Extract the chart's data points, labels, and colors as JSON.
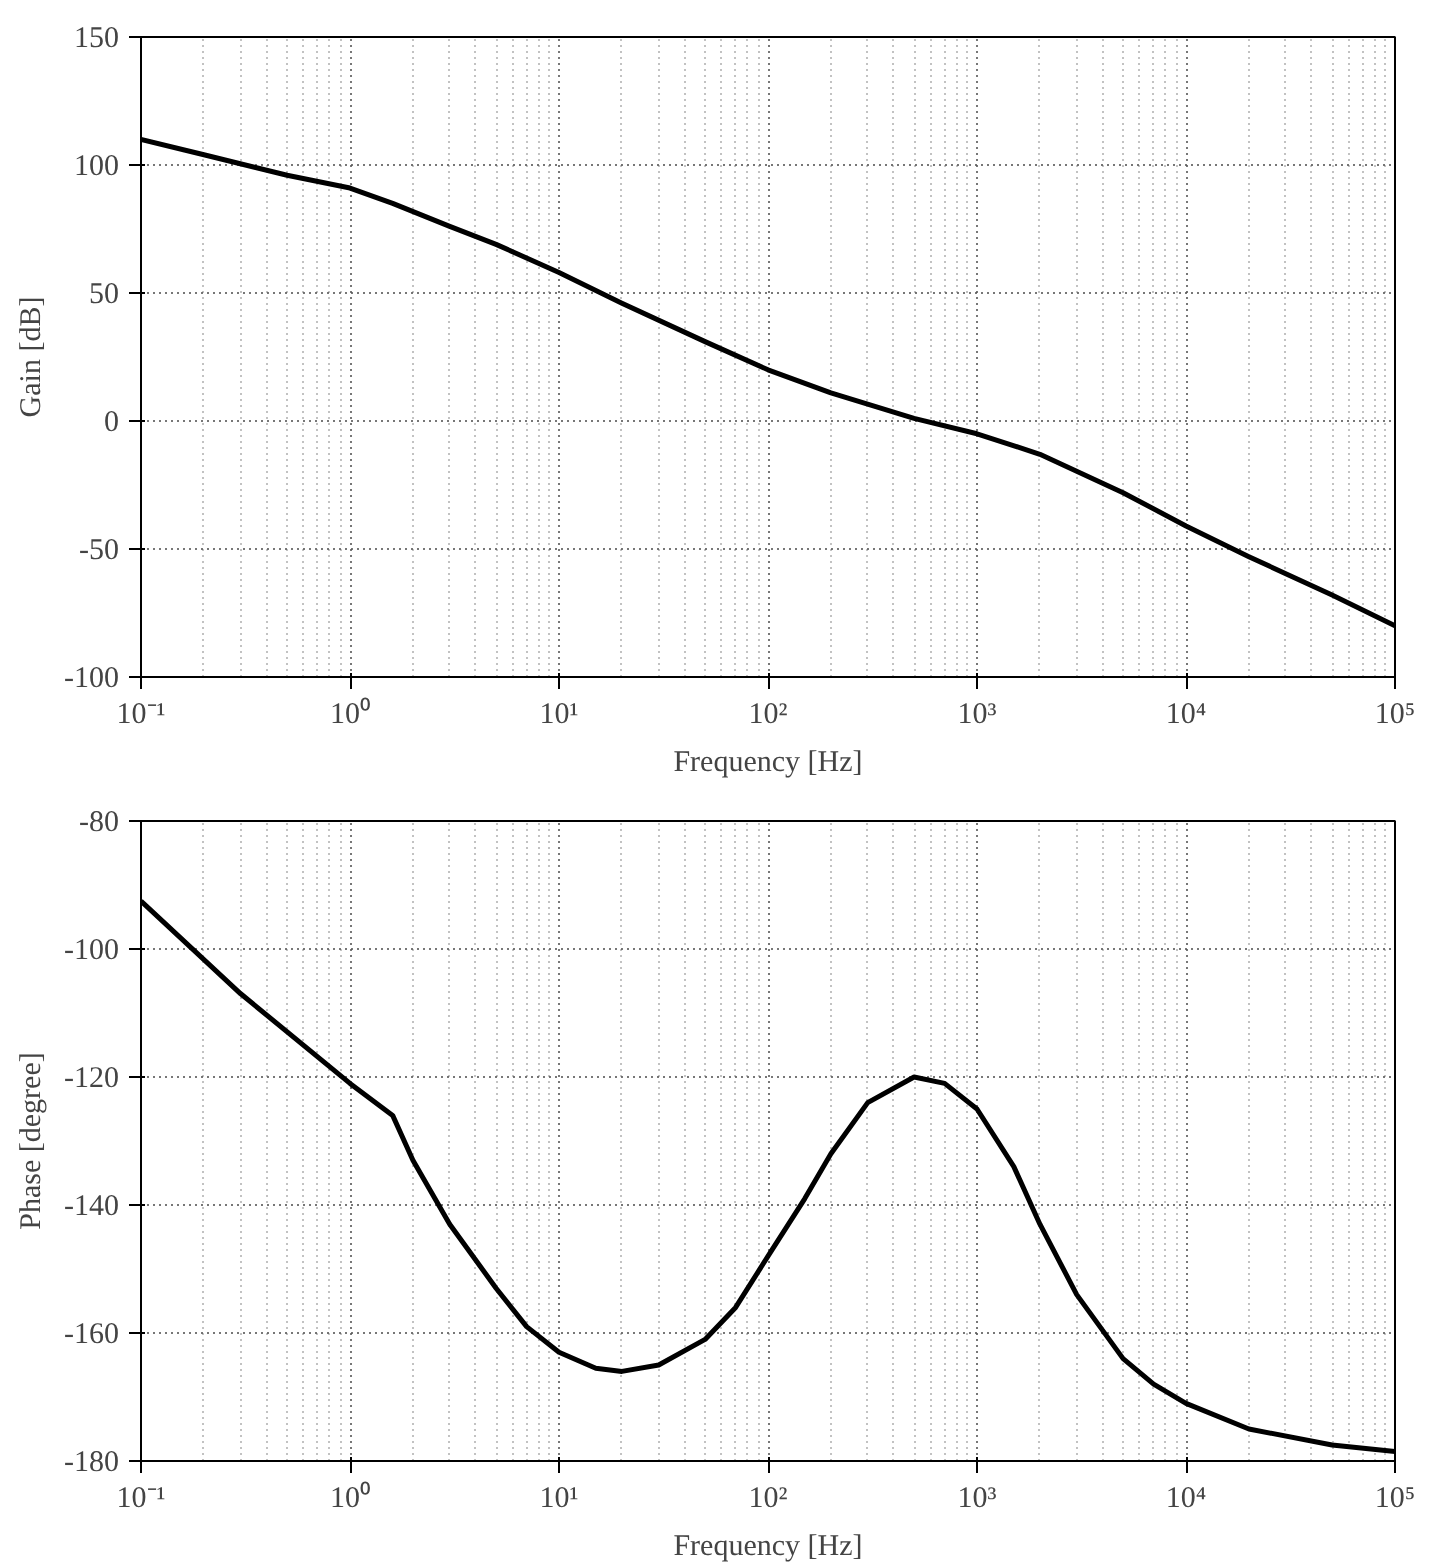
{
  "chart_data": [
    {
      "type": "line",
      "xlabel": "Frequency [Hz]",
      "ylabel": "Gain [dB]",
      "log": "x",
      "grid": true,
      "line_style": "solid",
      "xlim": [
        0.1,
        100000
      ],
      "ylim": [
        -100,
        150
      ],
      "xticks": [
        {
          "value": 0.1,
          "label": "10⁻¹"
        },
        {
          "value": 1,
          "label": "10⁰"
        },
        {
          "value": 10,
          "label": "10¹"
        },
        {
          "value": 100,
          "label": "10²"
        },
        {
          "value": 1000,
          "label": "10³"
        },
        {
          "value": 10000,
          "label": "10⁴"
        },
        {
          "value": 100000,
          "label": "10⁵"
        }
      ],
      "yticks": [
        -100,
        -50,
        0,
        50,
        100,
        150
      ],
      "x": [
        0.1,
        0.2,
        0.5,
        1,
        1.6,
        3,
        5,
        10,
        20,
        50,
        100,
        200,
        500,
        1000,
        2000,
        5000,
        10000,
        20000,
        50000,
        100000
      ],
      "series": [
        {
          "color": "#000000",
          "values": [
            110,
            104,
            96,
            91,
            85,
            76,
            69,
            58,
            46,
            31,
            20,
            11,
            1,
            -5,
            -13,
            -28,
            -41,
            -53,
            -68,
            -80
          ]
        }
      ]
    },
    {
      "type": "line",
      "xlabel": "Frequency [Hz]",
      "ylabel": "Phase [degree]",
      "log": "x",
      "grid": true,
      "line_style": "solid",
      "xlim": [
        0.1,
        100000
      ],
      "ylim": [
        -180,
        -80
      ],
      "xticks": [
        {
          "value": 0.1,
          "label": "10⁻¹"
        },
        {
          "value": 1,
          "label": "10⁰"
        },
        {
          "value": 10,
          "label": "10¹"
        },
        {
          "value": 100,
          "label": "10²"
        },
        {
          "value": 1000,
          "label": "10³"
        },
        {
          "value": 10000,
          "label": "10⁴"
        },
        {
          "value": 100000,
          "label": "10⁵"
        }
      ],
      "yticks": [
        -180,
        -160,
        -140,
        -120,
        -100,
        -80
      ],
      "x": [
        0.1,
        0.3,
        1,
        1.6,
        2,
        3,
        5,
        7,
        10,
        15,
        20,
        30,
        50,
        70,
        100,
        150,
        200,
        300,
        500,
        700,
        1000,
        1500,
        2000,
        3000,
        5000,
        7000,
        10000,
        20000,
        50000,
        100000
      ],
      "series": [
        {
          "color": "#000000",
          "values": [
            -92.5,
            -107,
            -121,
            -126,
            -133,
            -143,
            -153,
            -159,
            -163,
            -165.5,
            -166,
            -165,
            -161,
            -156,
            -148,
            -139,
            -132,
            -124,
            -120,
            -121,
            -125,
            -134,
            -143,
            -154,
            -164,
            -168,
            -171,
            -175,
            -177.5,
            -178.5
          ]
        }
      ]
    }
  ]
}
